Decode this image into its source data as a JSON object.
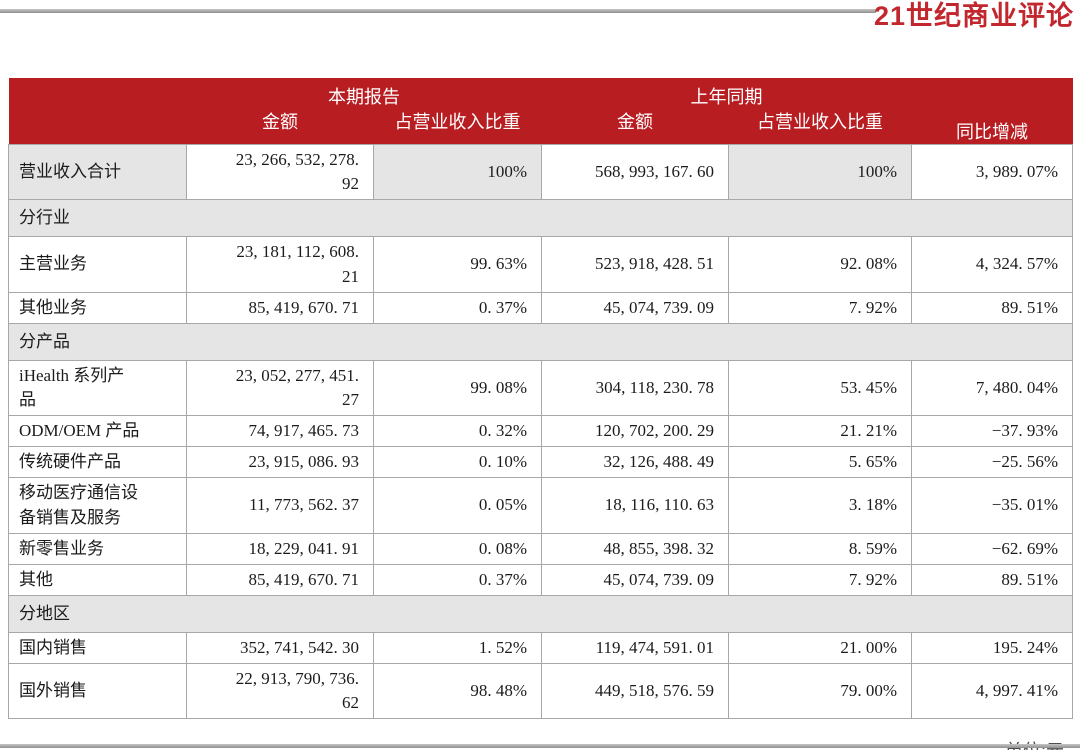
{
  "brand": {
    "logo_text": "21世纪商业评论"
  },
  "unit_note": "单位:元",
  "colors": {
    "accent_red": "#b81d22",
    "logo_red": "#c1272d",
    "section_gray": "#e5e5e5",
    "border_gray": "#a8a8a8",
    "rule_gray": "#9c9c9c",
    "note_gray": "#4d4d4d",
    "header_text": "#ffffff",
    "body_text": "#1b1b1b"
  },
  "table": {
    "header": {
      "groups": [
        {
          "title": "本期报告",
          "cols": [
            "金额",
            "占营业收入比重"
          ]
        },
        {
          "title": "上年同期",
          "cols": [
            "金额",
            "占营业收入比重"
          ]
        }
      ],
      "yoy": "同比增减"
    },
    "rows": [
      {
        "type": "data",
        "emphasis": true,
        "label": "营业收入合计",
        "values": [
          "23, 266, 532, 278.\n92",
          "100%",
          "568, 993, 167. 60",
          "100%",
          "3, 989. 07%"
        ]
      },
      {
        "type": "section",
        "label": "分行业"
      },
      {
        "type": "data",
        "label": "主营业务",
        "values": [
          "23, 181, 112, 608.\n21",
          "99. 63%",
          "523, 918, 428. 51",
          "92. 08%",
          "4, 324. 57%"
        ]
      },
      {
        "type": "data",
        "label": "其他业务",
        "values": [
          "85, 419, 670. 71",
          "0. 37%",
          "45, 074, 739. 09",
          "7. 92%",
          "89. 51%"
        ]
      },
      {
        "type": "section",
        "label": "分产品"
      },
      {
        "type": "data",
        "label": "iHealth 系列产\n品",
        "values": [
          "23, 052, 277, 451.\n27",
          "99. 08%",
          "304, 118, 230. 78",
          "53. 45%",
          "7, 480. 04%"
        ]
      },
      {
        "type": "data",
        "label": "ODM/OEM 产品",
        "values": [
          "74, 917, 465. 73",
          "0. 32%",
          "120, 702, 200. 29",
          "21. 21%",
          "−37. 93%"
        ]
      },
      {
        "type": "data",
        "label": "传统硬件产品",
        "values": [
          "23, 915, 086. 93",
          "0. 10%",
          "32, 126, 488. 49",
          "5. 65%",
          "−25. 56%"
        ]
      },
      {
        "type": "data",
        "label": "移动医疗通信设\n备销售及服务",
        "values": [
          "11, 773, 562. 37",
          "0. 05%",
          "18, 116, 110. 63",
          "3. 18%",
          "−35. 01%"
        ]
      },
      {
        "type": "data",
        "label": "新零售业务",
        "values": [
          "18, 229, 041. 91",
          "0. 08%",
          "48, 855, 398. 32",
          "8. 59%",
          "−62. 69%"
        ]
      },
      {
        "type": "data",
        "label": "其他",
        "values": [
          "85, 419, 670. 71",
          "0. 37%",
          "45, 074, 739. 09",
          "7. 92%",
          "89. 51%"
        ]
      },
      {
        "type": "section",
        "label": "分地区"
      },
      {
        "type": "data",
        "label": "国内销售",
        "values": [
          "352, 741, 542. 30",
          "1. 52%",
          "119, 474, 591. 01",
          "21. 00%",
          "195. 24%"
        ]
      },
      {
        "type": "data",
        "label": "国外销售",
        "values": [
          "22, 913, 790, 736.\n62",
          "98. 48%",
          "449, 518, 576. 59",
          "79. 00%",
          "4, 997. 41%"
        ]
      }
    ]
  }
}
